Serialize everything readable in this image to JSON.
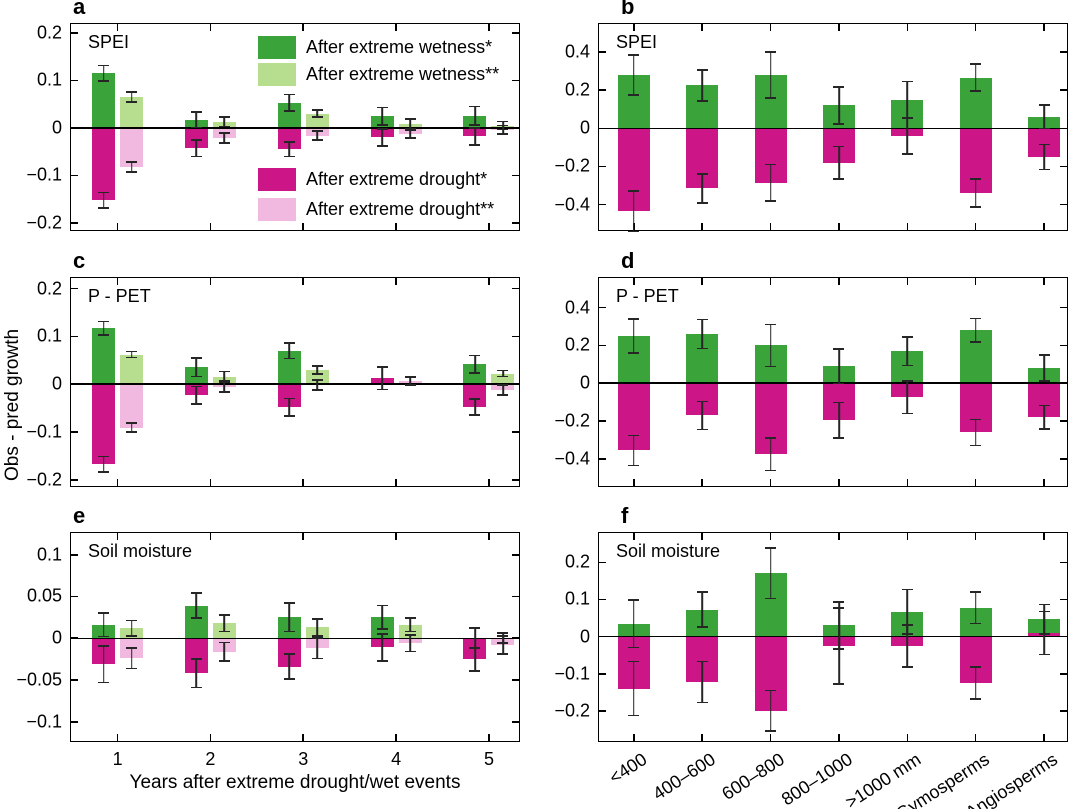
{
  "figure": {
    "ylabel": "Obs - pred growth",
    "xlabel_left": "Years after extreme drought/wet events",
    "background": "#ffffff"
  },
  "colors": {
    "wet1": "#3aa33a",
    "wet2": "#b6de8e",
    "dry1": "#cc1688",
    "dry2": "#f2b9e0",
    "axis": "#000000",
    "error_bar": "#262626"
  },
  "legend": {
    "entries": [
      {
        "key": "wet1",
        "label": "After extreme wetness*"
      },
      {
        "key": "wet2",
        "label": "After extreme wetness**"
      },
      {
        "key": "dry1",
        "label": "After extreme drought*"
      },
      {
        "key": "dry2",
        "label": "After extreme drought**"
      }
    ]
  },
  "chart_data": [
    {
      "id": "a",
      "type": "bar",
      "title": "SPEI",
      "categories": [
        "1",
        "2",
        "3",
        "4",
        "5"
      ],
      "ylim": [
        -0.215,
        0.219
      ],
      "yticks": [
        {
          "v": 0.2,
          "label": "0.2"
        },
        {
          "v": 0.1,
          "label": "0.1"
        },
        {
          "v": 0,
          "label": "0"
        },
        {
          "v": -0.1,
          "label": "−0.1"
        },
        {
          "v": -0.2,
          "label": "−0.2"
        }
      ],
      "series": [
        {
          "name": "After extreme wetness*",
          "key": "wet1",
          "values": [
            0.115,
            0.017,
            0.053,
            0.025,
            0.026
          ],
          "errors": [
            0.018,
            0.018,
            0.019,
            0.02,
            0.021
          ]
        },
        {
          "name": "After extreme wetness**",
          "key": "wet2",
          "values": [
            0.065,
            0.013,
            0.03,
            0.008,
            0.005
          ],
          "errors": [
            0.012,
            0.012,
            0.009,
            0.012,
            0.01
          ]
        },
        {
          "name": "After extreme drought*",
          "key": "dry1",
          "values": [
            -0.152,
            -0.043,
            -0.045,
            -0.02,
            -0.018
          ],
          "errors": [
            0.018,
            0.019,
            0.017,
            0.02,
            0.019
          ]
        },
        {
          "name": "After extreme drought**",
          "key": "dry2",
          "values": [
            -0.082,
            -0.021,
            -0.016,
            -0.013,
            -0.004
          ],
          "errors": [
            0.012,
            0.012,
            0.011,
            0.01,
            0.011
          ]
        }
      ]
    },
    {
      "id": "b",
      "type": "bar",
      "title": "SPEI",
      "categories": [
        "<400",
        "400–600",
        "600–800",
        "800–1000",
        ">1000 mm",
        "Gymosperms",
        "Angiosperms"
      ],
      "ylim": [
        -0.533,
        0.547
      ],
      "yticks": [
        {
          "v": 0.4,
          "label": "0.4"
        },
        {
          "v": 0.2,
          "label": "0.2"
        },
        {
          "v": 0,
          "label": "0"
        },
        {
          "v": -0.2,
          "label": "−0.2"
        },
        {
          "v": -0.4,
          "label": "−0.4"
        }
      ],
      "series": [
        {
          "name": "After extreme wetness*",
          "key": "wet1",
          "values": [
            0.28,
            0.225,
            0.28,
            0.12,
            0.15,
            0.265,
            0.06
          ],
          "errors": [
            0.11,
            0.085,
            0.125,
            0.1,
            0.1,
            0.075,
            0.065
          ]
        },
        {
          "name": "After extreme drought*",
          "key": "dry1",
          "values": [
            -0.435,
            -0.315,
            -0.285,
            -0.18,
            -0.04,
            -0.34,
            -0.15
          ],
          "errors": [
            0.11,
            0.08,
            0.1,
            0.09,
            0.1,
            0.078,
            0.07
          ]
        }
      ]
    },
    {
      "id": "c",
      "type": "bar",
      "title": "P - PET",
      "categories": [
        "1",
        "2",
        "3",
        "4",
        "5"
      ],
      "ylim": [
        -0.213,
        0.222
      ],
      "yticks": [
        {
          "v": 0.2,
          "label": "0.2"
        },
        {
          "v": 0.1,
          "label": "0.1"
        },
        {
          "v": 0,
          "label": "0"
        },
        {
          "v": -0.1,
          "label": "−0.1"
        },
        {
          "v": -0.2,
          "label": "−0.2"
        }
      ],
      "series": [
        {
          "name": "After extreme wetness*",
          "key": "wet1",
          "values": [
            0.117,
            0.035,
            0.07,
            0,
            0.042
          ],
          "errors": [
            0.016,
            0.021,
            0.018,
            0,
            0.02
          ]
        },
        {
          "name": "After extreme wetness**",
          "key": "wet2",
          "values": [
            0.062,
            0.015,
            0.03,
            0,
            0.022
          ],
          "errors": [
            0.008,
            0.013,
            0.01,
            0,
            0.008
          ]
        },
        {
          "name": "After extreme drought*",
          "key": "dry1",
          "values": [
            -0.168,
            -0.023,
            -0.048,
            0.012,
            -0.048
          ],
          "errors": [
            0.018,
            0.02,
            0.02,
            0.025,
            0.018
          ]
        },
        {
          "name": "After extreme drought**",
          "key": "dry2",
          "values": [
            -0.091,
            -0.005,
            -0.002,
            0.007,
            -0.012
          ],
          "errors": [
            0.011,
            0.013,
            0.012,
            0.01,
            0.012
          ]
        }
      ]
    },
    {
      "id": "d",
      "type": "bar",
      "title": "P - PET",
      "categories": [
        "<400",
        "400–600",
        "600–800",
        "800–1000",
        ">1000 mm",
        "Gymosperms",
        "Angiosperms"
      ],
      "ylim": [
        -0.543,
        0.556
      ],
      "yticks": [
        {
          "v": 0.4,
          "label": "0.4"
        },
        {
          "v": 0.2,
          "label": "0.2"
        },
        {
          "v": 0,
          "label": "0"
        },
        {
          "v": -0.2,
          "label": "−0.2"
        },
        {
          "v": -0.4,
          "label": "−0.4"
        }
      ],
      "series": [
        {
          "name": "After extreme wetness*",
          "key": "wet1",
          "values": [
            0.25,
            0.26,
            0.2,
            0.09,
            0.17,
            0.28,
            0.08
          ],
          "errors": [
            0.095,
            0.08,
            0.115,
            0.095,
            0.08,
            0.067,
            0.072
          ]
        },
        {
          "name": "After extreme drought*",
          "key": "dry1",
          "values": [
            -0.355,
            -0.17,
            -0.375,
            -0.195,
            -0.075,
            -0.26,
            -0.18
          ],
          "errors": [
            0.084,
            0.078,
            0.09,
            0.098,
            0.09,
            0.073,
            0.066
          ]
        }
      ]
    },
    {
      "id": "e",
      "type": "bar",
      "title": "Soil moisture",
      "categories": [
        "1",
        "2",
        "3",
        "4",
        "5"
      ],
      "ylim": [
        -0.123,
        0.126
      ],
      "yticks": [
        {
          "v": 0.1,
          "label": "0.1"
        },
        {
          "v": 0.05,
          "label": "0.05"
        },
        {
          "v": 0,
          "label": "0"
        },
        {
          "v": -0.05,
          "label": "−0.05"
        },
        {
          "v": -0.1,
          "label": "−0.1"
        }
      ],
      "series": [
        {
          "name": "After extreme wetness*",
          "key": "wet1",
          "values": [
            0.016,
            0.039,
            0.025,
            0.025,
            0
          ],
          "errors": [
            0.015,
            0.016,
            0.018,
            0.015,
            0.013
          ]
        },
        {
          "name": "After extreme wetness**",
          "key": "wet2",
          "values": [
            0.012,
            0.018,
            0.013,
            0.016,
            0
          ],
          "errors": [
            0.01,
            0.011,
            0.011,
            0.009,
            0.007
          ]
        },
        {
          "name": "After extreme drought*",
          "key": "dry1",
          "values": [
            -0.031,
            -0.042,
            -0.034,
            -0.011,
            -0.025
          ],
          "errors": [
            0.023,
            0.018,
            0.016,
            0.017,
            0.015
          ]
        },
        {
          "name": "After extreme drought**",
          "key": "dry2",
          "values": [
            -0.024,
            -0.016,
            -0.012,
            -0.006,
            -0.008
          ],
          "errors": [
            0.013,
            0.012,
            0.013,
            0.011,
            0.012
          ]
        }
      ]
    },
    {
      "id": "f",
      "type": "bar",
      "title": "Soil moisture",
      "categories": [
        "<400",
        "400–600",
        "600–800",
        "800–1000",
        ">1000 mm",
        "Gymosperms",
        "Angiosperms"
      ],
      "ylim": [
        -0.281,
        0.279
      ],
      "yticks": [
        {
          "v": 0.2,
          "label": "0.2"
        },
        {
          "v": 0.1,
          "label": "0.1"
        },
        {
          "v": 0,
          "label": "0"
        },
        {
          "v": -0.1,
          "label": "−0.1"
        },
        {
          "v": -0.2,
          "label": "−0.2"
        }
      ],
      "series": [
        {
          "name": "After extreme wetness*",
          "key": "wet1",
          "values": [
            0.035,
            0.073,
            0.17,
            0.03,
            0.067,
            0.078,
            0.047
          ],
          "errors": [
            0.066,
            0.05,
            0.07,
            0.065,
            0.062,
            0.045,
            0.042
          ]
        },
        {
          "name": "After extreme drought*",
          "key": "dry1",
          "values": [
            -0.14,
            -0.122,
            -0.2,
            -0.025,
            -0.025,
            -0.125,
            0.01
          ],
          "errors": [
            0.075,
            0.057,
            0.057,
            0.105,
            0.059,
            0.045,
            0.06
          ]
        }
      ]
    }
  ]
}
